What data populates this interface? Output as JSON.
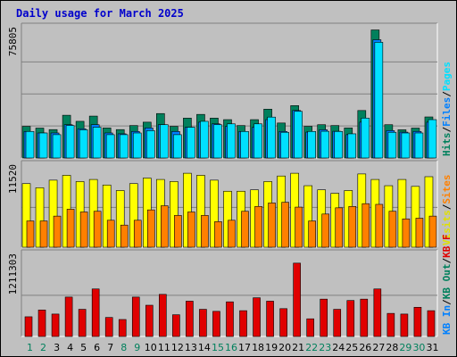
{
  "title": "Daily usage for March 2025",
  "colors": {
    "hits": "#00805c",
    "files": "#0080ff",
    "pages": "#00e0ff",
    "sites": "#ff8000",
    "visits": "#ffff00",
    "kbin": "#0080ff",
    "kbout": "#00805c",
    "kbf": "#e00000",
    "weekday": "#000000",
    "weekend": "#00805c"
  },
  "legend": {
    "top": [
      {
        "text": "Hits",
        "color": "#00805c"
      },
      {
        "text": "/",
        "color": "#000000"
      },
      {
        "text": "Files",
        "color": "#0080ff"
      },
      {
        "text": "/",
        "color": "#000000"
      },
      {
        "text": "Pages",
        "color": "#00e0ff"
      }
    ],
    "middle": [
      {
        "text": "Visits",
        "color": "#e0e000"
      },
      {
        "text": "/",
        "color": "#000000"
      },
      {
        "text": "Sites",
        "color": "#ff8000"
      }
    ],
    "bottom": [
      {
        "text": "KB In",
        "color": "#0080ff"
      },
      {
        "text": "/",
        "color": "#000000"
      },
      {
        "text": "KB Out",
        "color": "#00805c"
      },
      {
        "text": "/",
        "color": "#000000"
      },
      {
        "text": "KB F",
        "color": "#e00000"
      }
    ]
  },
  "chart_data": [
    {
      "type": "bar",
      "panel": "hits-files-pages",
      "ylim": [
        0,
        75805
      ],
      "ytick": "75805",
      "categories": [
        "1",
        "2",
        "3",
        "4",
        "5",
        "6",
        "7",
        "8",
        "9",
        "10",
        "11",
        "12",
        "13",
        "14",
        "15",
        "16",
        "17",
        "18",
        "19",
        "20",
        "21",
        "22",
        "23",
        "24",
        "25",
        "26",
        "27",
        "28",
        "29",
        "30",
        "31"
      ],
      "series": [
        {
          "name": "Hits",
          "values": [
            18700,
            17700,
            16800,
            25300,
            21700,
            24800,
            17800,
            16800,
            19200,
            21200,
            26300,
            18700,
            23600,
            25800,
            23600,
            22700,
            19200,
            22700,
            28900,
            20700,
            31000,
            18700,
            19700,
            19200,
            17800,
            28100,
            75805,
            19700,
            16700,
            17700,
            24300
          ]
        },
        {
          "name": "Files",
          "values": [
            15700,
            14800,
            14800,
            19700,
            17300,
            19700,
            14800,
            14300,
            15700,
            17800,
            19700,
            15700,
            18200,
            21200,
            20200,
            18700,
            15700,
            18200,
            22700,
            15700,
            28100,
            15300,
            16700,
            15800,
            13800,
            21200,
            70000,
            16200,
            15300,
            15700,
            21200
          ]
        },
        {
          "name": "Pages",
          "values": [
            15700,
            14800,
            13800,
            19200,
            16700,
            18200,
            13800,
            13800,
            14800,
            16200,
            19700,
            13800,
            18200,
            21700,
            19700,
            20200,
            15700,
            20200,
            24200,
            15200,
            27600,
            15700,
            15800,
            15700,
            14300,
            23600,
            68500,
            15200,
            14800,
            14800,
            22700
          ]
        }
      ]
    },
    {
      "type": "bar",
      "panel": "visits-sites",
      "ylim": [
        0,
        11520
      ],
      "ytick": "11520",
      "categories": [
        "1",
        "2",
        "3",
        "4",
        "5",
        "6",
        "7",
        "8",
        "9",
        "10",
        "11",
        "12",
        "13",
        "14",
        "15",
        "16",
        "17",
        "18",
        "19",
        "20",
        "21",
        "22",
        "23",
        "24",
        "25",
        "26",
        "27",
        "28",
        "29",
        "30",
        "31"
      ],
      "series": [
        {
          "name": "Visits",
          "values": [
            9200,
            8600,
            9700,
            10400,
            9500,
            9800,
            9000,
            8200,
            9200,
            10000,
            9800,
            9500,
            10700,
            10400,
            9700,
            8100,
            8100,
            8300,
            9500,
            10300,
            10700,
            8900,
            8300,
            7800,
            8200,
            10600,
            9800,
            8900,
            9800,
            8800,
            10200
          ]
        },
        {
          "name": "Sites",
          "values": [
            3800,
            3800,
            4500,
            5500,
            5100,
            5200,
            3900,
            3200,
            3900,
            5400,
            6000,
            4600,
            5100,
            4600,
            3700,
            3900,
            5200,
            5900,
            6400,
            6500,
            5800,
            3800,
            4800,
            5700,
            5900,
            6300,
            6200,
            5200,
            4100,
            4200,
            4500
          ]
        }
      ]
    },
    {
      "type": "bar",
      "panel": "kb",
      "ylim": [
        0,
        1211303
      ],
      "ytick": "1211303",
      "categories": [
        "1",
        "2",
        "3",
        "4",
        "5",
        "6",
        "7",
        "8",
        "9",
        "10",
        "11",
        "12",
        "13",
        "14",
        "15",
        "16",
        "17",
        "18",
        "19",
        "20",
        "21",
        "22",
        "23",
        "24",
        "25",
        "26",
        "27",
        "28",
        "29",
        "30",
        "31"
      ],
      "series": [
        {
          "name": "KB F",
          "values": [
            290000,
            390000,
            330000,
            580000,
            400000,
            700000,
            280000,
            250000,
            580000,
            460000,
            620000,
            320000,
            520000,
            400000,
            370000,
            510000,
            380000,
            570000,
            520000,
            410000,
            1080000,
            260000,
            550000,
            400000,
            530000,
            550000,
            700000,
            340000,
            330000,
            430000,
            380000
          ]
        }
      ]
    }
  ]
}
